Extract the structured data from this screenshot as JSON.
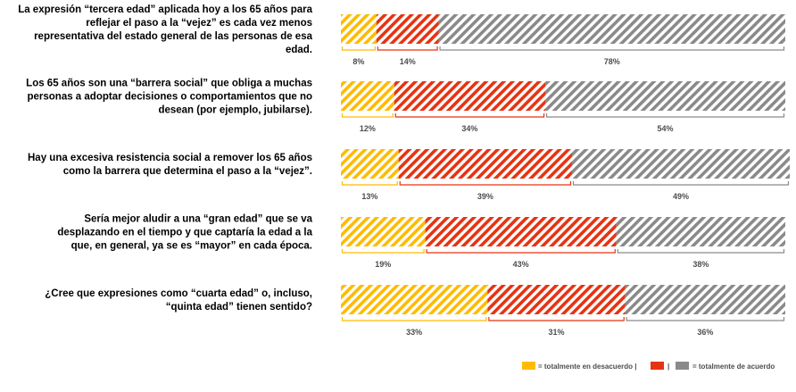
{
  "chart_data": {
    "type": "bar",
    "orientation": "horizontal",
    "stacked": true,
    "percent_stacked": true,
    "colors": {
      "desacuerdo": "#ffbb00",
      "intermedio": "#e63312",
      "acuerdo": "#8a8a8a"
    },
    "categories": [
      "La expresión “tercera edad” aplicada hoy a los 65 años para reflejar el paso a la “vejez” es cada vez menos representativa del estado general de las personas de esa edad.",
      "Los 65 años son una “barrera social” que obliga a muchas personas a adoptar decisiones o comportamientos que no desean (por ejemplo, jubilarse).",
      "Hay una excesiva resistencia social a remover los 65 años como la barrera que determina el paso a la “vejez”.",
      "Sería mejor aludir a una “gran edad” que se va desplazando en el tiempo y que captaría la edad a la que, en general, ya se es “mayor” en cada época.",
      "¿Cree que expresiones como “cuarta edad” o, incluso, “quinta edad” tienen sentido?"
    ],
    "category_lines": [
      [
        "La expresión “tercera edad” aplicada hoy a los 65 años para",
        "reflejar el paso a la “vejez” es cada vez menos",
        "representativa del estado general de las personas de esa",
        "edad."
      ],
      [
        "Los 65 años son una “barrera social” que obliga a muchas",
        "personas a adoptar decisiones o comportamientos que no",
        "desean (por ejemplo, jubilarse)."
      ],
      [
        "Hay una excesiva resistencia social a remover los 65 años",
        "como la barrera que determina el paso a la “vejez”."
      ],
      [
        "Sería mejor aludir a una “gran edad” que se va",
        "desplazando en el tiempo y que captaría la edad a la",
        "que, en general, ya se es “mayor” en cada época."
      ],
      [
        "¿Cree que expresiones como “cuarta edad” o, incluso,",
        "“quinta edad” tienen sentido?"
      ]
    ],
    "series": [
      {
        "name": "totalmente en desacuerdo",
        "color_key": "desacuerdo",
        "values": [
          8,
          12,
          13,
          19,
          33
        ]
      },
      {
        "name": "",
        "color_key": "intermedio",
        "values": [
          14,
          34,
          39,
          43,
          31
        ]
      },
      {
        "name": "totalmente de acuerdo",
        "color_key": "acuerdo",
        "values": [
          78,
          54,
          49,
          38,
          36
        ]
      }
    ],
    "value_labels": [
      [
        "8%",
        "14%",
        "78%"
      ],
      [
        "12%",
        "34%",
        "54%"
      ],
      [
        "13%",
        "39%",
        "49%"
      ],
      [
        "19%",
        "43%",
        "38%"
      ],
      [
        "33%",
        "31%",
        "36%"
      ]
    ],
    "xlim": [
      0,
      100
    ],
    "legend": {
      "position": "bottom-right",
      "items": [
        "= totalmente en desacuerdo |",
        "|",
        "= totalmente de acuerdo"
      ]
    }
  }
}
